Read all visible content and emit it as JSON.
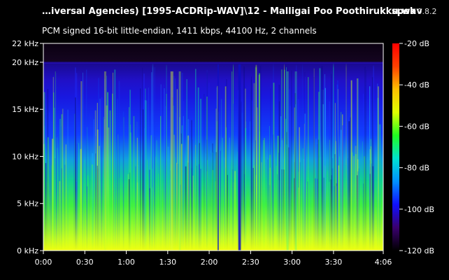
{
  "header": {
    "title": "…iversal Agencies) [1995-ACDRip-WAV]\\12 - Malligai Poo Poothirukku.wav",
    "app_name": "spek",
    "app_version": "0.8.2",
    "file_info": "PCM signed 16-bit little-endian, 1411 kbps, 44100 Hz, 2 channels"
  },
  "spectrogram": {
    "freq_axis": {
      "unit": "kHz",
      "range": [
        0,
        22
      ],
      "ticks": [
        {
          "value": 22,
          "label": "22 kHz"
        },
        {
          "value": 20,
          "label": "20 kHz"
        },
        {
          "value": 15,
          "label": "15 kHz"
        },
        {
          "value": 10,
          "label": "10 kHz"
        },
        {
          "value": 5,
          "label": "5 kHz"
        },
        {
          "value": 0,
          "label": "0 kHz"
        }
      ]
    },
    "time_axis": {
      "range_seconds": [
        0,
        246
      ],
      "ticks": [
        {
          "value": 0,
          "label": "0:00"
        },
        {
          "value": 30,
          "label": "0:30"
        },
        {
          "value": 60,
          "label": "1:00"
        },
        {
          "value": 90,
          "label": "1:30"
        },
        {
          "value": 120,
          "label": "2:00"
        },
        {
          "value": 150,
          "label": "2:30"
        },
        {
          "value": 180,
          "label": "3:00"
        },
        {
          "value": 210,
          "label": "3:30"
        },
        {
          "value": 246,
          "label": "4:06"
        }
      ]
    },
    "db_scale": {
      "range": [
        -120,
        -20
      ],
      "ticks": [
        {
          "value": -20,
          "label": "-20 dB"
        },
        {
          "value": -40,
          "label": "-40 dB"
        },
        {
          "value": -60,
          "label": "-60 dB"
        },
        {
          "value": -80,
          "label": "-80 dB"
        },
        {
          "value": -100,
          "label": "-100 dB"
        },
        {
          "value": -120,
          "label": "-120 dB"
        }
      ],
      "colors": [
        "#000000",
        "#3a006e",
        "#1010ff",
        "#0090ff",
        "#00e0d0",
        "#20ff20",
        "#e0ff00",
        "#ffc000",
        "#ff4000",
        "#ff0000"
      ]
    },
    "lowpass_cutoff_khz": 20
  }
}
